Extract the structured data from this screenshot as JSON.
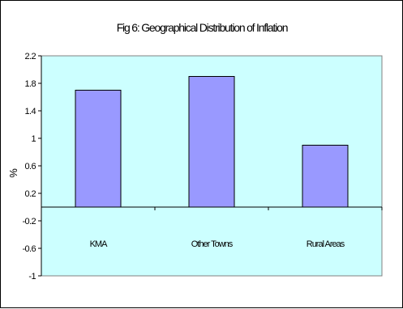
{
  "chart_data": {
    "type": "bar",
    "title": "Fig 6: Geographical Distribution of Inflation",
    "xlabel": "",
    "ylabel": "%",
    "categories": [
      "KMA",
      "Other Towns",
      "Rural Areas"
    ],
    "values": [
      1.7,
      1.9,
      0.9
    ],
    "ylim": [
      -1,
      2.2
    ],
    "yticks": [
      2.2,
      1.8,
      1.4,
      1,
      0.6,
      0.2,
      -0.2,
      -0.6,
      -1
    ],
    "ytick_labels": [
      "2.2",
      "1.8",
      "1.4",
      "1",
      "0.6",
      "0.2",
      "-0.2",
      "-0.6",
      "-1"
    ],
    "grid": false,
    "legend": "none",
    "colors": {
      "plot_background": "#ccffff",
      "bar_fill": "#9999ff",
      "bar_stroke": "#000000",
      "axis": "#000000"
    }
  }
}
